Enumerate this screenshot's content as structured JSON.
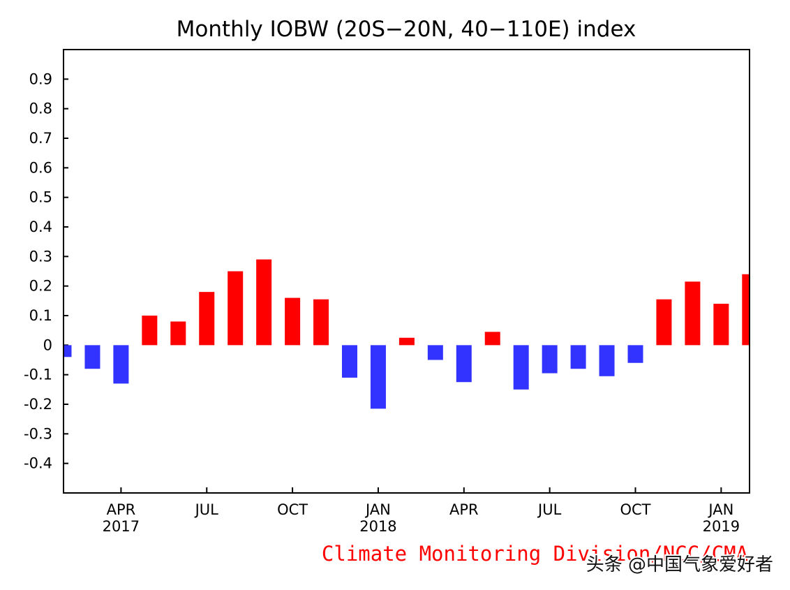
{
  "colors": {
    "positive": "#ff0000",
    "negative": "#3333ff",
    "axis": "#000000",
    "credit": "#ff0000"
  },
  "chart_data": {
    "type": "bar",
    "title": "Monthly IOBW (20S−20N, 40−110E) index",
    "xlabel": "",
    "ylabel": "",
    "ylim": [
      -0.5,
      1.0
    ],
    "yticks": [
      "0.9",
      "0.8",
      "0.7",
      "0.6",
      "0.5",
      "0.4",
      "0.3",
      "0.2",
      "0.1",
      "0",
      "-0.1",
      "-0.2",
      "-0.3",
      "-0.4"
    ],
    "ytick_values": [
      0.9,
      0.8,
      0.7,
      0.6,
      0.5,
      0.4,
      0.3,
      0.2,
      0.1,
      0,
      -0.1,
      -0.2,
      -0.3,
      -0.4
    ],
    "categories": [
      "2017-02",
      "2017-03",
      "2017-04",
      "2017-05",
      "2017-06",
      "2017-07",
      "2017-08",
      "2017-09",
      "2017-10",
      "2017-11",
      "2017-12",
      "2018-01",
      "2018-02",
      "2018-03",
      "2018-04",
      "2018-05",
      "2018-06",
      "2018-07",
      "2018-08",
      "2018-09",
      "2018-10",
      "2018-11",
      "2018-12",
      "2019-01",
      "2019-02"
    ],
    "values": [
      -0.04,
      -0.08,
      -0.13,
      0.1,
      0.08,
      0.18,
      0.25,
      0.29,
      0.16,
      0.155,
      -0.11,
      -0.215,
      0.025,
      -0.05,
      -0.125,
      0.045,
      -0.15,
      -0.095,
      -0.08,
      -0.105,
      -0.06,
      0.155,
      0.215,
      0.14,
      0.24
    ],
    "xticks": [
      {
        "index": 2,
        "month": "APR",
        "year": "2017"
      },
      {
        "index": 5,
        "month": "JUL",
        "year": ""
      },
      {
        "index": 8,
        "month": "OCT",
        "year": ""
      },
      {
        "index": 11,
        "month": "JAN",
        "year": "2018"
      },
      {
        "index": 14,
        "month": "APR",
        "year": ""
      },
      {
        "index": 17,
        "month": "JUL",
        "year": ""
      },
      {
        "index": 20,
        "month": "OCT",
        "year": ""
      },
      {
        "index": 23,
        "month": "JAN",
        "year": "2019"
      }
    ],
    "grid": false,
    "legend": "none"
  },
  "footer": {
    "credit": "Climate Monitoring Division/NCC/CMA",
    "watermark": "头条 @中国气象爱好者"
  }
}
